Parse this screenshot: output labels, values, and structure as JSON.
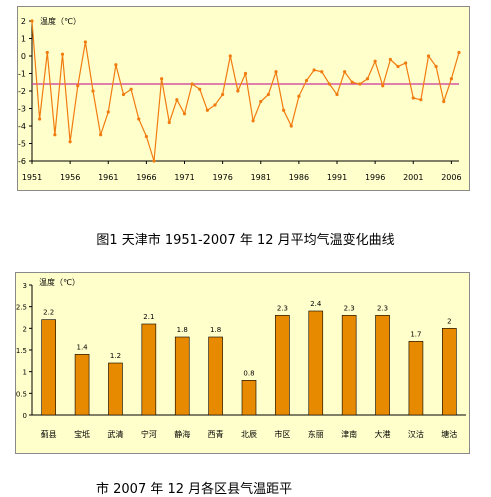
{
  "captions": {
    "line_chart": "图1  天津市 1951-2007 年 12 月平均气温变化曲线",
    "bar_chart": "市 2007 年 12 月各区县气温距平"
  },
  "colors": {
    "panel_background": "#ffffcc",
    "line_series": "#f07c10",
    "average_line": "#cc3399",
    "bar_fill": "#e88a00"
  },
  "chart_data": [
    {
      "type": "line",
      "ylabel": "温度（℃）",
      "ylim": [
        -6,
        2
      ],
      "yticks": [
        2,
        1,
        0,
        -1,
        -2,
        -3,
        -4,
        -5,
        -6
      ],
      "xlim": [
        1951,
        2007
      ],
      "xticks": [
        1951,
        1956,
        1961,
        1966,
        1971,
        1976,
        1981,
        1986,
        1991,
        1996,
        2001,
        2006
      ],
      "grid": false,
      "reference_line": -1.6,
      "series": [
        {
          "x": [
            1951,
            1952,
            1953,
            1954,
            1955,
            1956,
            1957,
            1958,
            1959,
            1960,
            1961,
            1962,
            1963,
            1964,
            1965,
            1966,
            1967,
            1968,
            1969,
            1970,
            1971,
            1972,
            1973,
            1974,
            1975,
            1976,
            1977,
            1978,
            1979,
            1980,
            1981,
            1982,
            1983,
            1984,
            1985,
            1986,
            1987,
            1988,
            1989,
            1990,
            1991,
            1992,
            1993,
            1994,
            1995,
            1996,
            1997,
            1998,
            1999,
            2000,
            2001,
            2002,
            2003,
            2004,
            2005,
            2006,
            2007
          ],
          "values": [
            2.0,
            -3.6,
            0.2,
            -4.5,
            0.1,
            -4.9,
            -1.7,
            0.8,
            -2.0,
            -4.5,
            -3.2,
            -0.5,
            -2.2,
            -1.9,
            -3.6,
            -4.6,
            -6.0,
            -1.3,
            -3.8,
            -2.5,
            -3.3,
            -1.6,
            -1.9,
            -3.1,
            -2.8,
            -2.2,
            0.0,
            -2.0,
            -1.0,
            -3.7,
            -2.6,
            -2.2,
            -0.9,
            -3.1,
            -4.0,
            -2.3,
            -1.4,
            -0.8,
            -0.9,
            -1.6,
            -2.2,
            -0.9,
            -1.5,
            -1.6,
            -1.3,
            -0.3,
            -1.7,
            -0.2,
            -0.6,
            -0.4,
            -2.4,
            -2.5,
            0.0,
            -0.6,
            -2.6,
            -1.3,
            0.2
          ]
        }
      ]
    },
    {
      "type": "bar",
      "ylabel": "温度（℃）",
      "ylim": [
        0,
        3
      ],
      "yticks": [
        0,
        0.5,
        1,
        1.5,
        2,
        2.5,
        3
      ],
      "grid": false,
      "categories": [
        "蓟县",
        "宝坻",
        "武清",
        "宁河",
        "静海",
        "西青",
        "北辰",
        "市区",
        "东丽",
        "津南",
        "大港",
        "汉沽",
        "塘沽"
      ],
      "values": [
        2.2,
        1.4,
        1.2,
        2.1,
        1.8,
        1.8,
        0.8,
        2.3,
        2.4,
        2.3,
        2.3,
        1.7,
        2.0
      ],
      "data_labels": [
        "2.2",
        "1.4",
        "1.2",
        "2.1",
        "1.8",
        "1.8",
        "0.8",
        "2.3",
        "2.4",
        "2.3",
        "2.3",
        "1.7",
        "2"
      ]
    }
  ]
}
